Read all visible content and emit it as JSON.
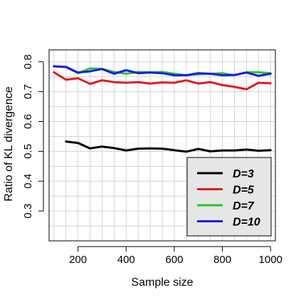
{
  "chart_data": {
    "type": "line",
    "title": "",
    "xlabel": "Sample size",
    "ylabel": "Ratio of KL divergence",
    "xlim": [
      80,
      1020
    ],
    "ylim": [
      0.2,
      0.84
    ],
    "x_ticks": [
      200,
      400,
      600,
      800,
      1000
    ],
    "x_tick_labels": [
      "200",
      "400",
      "600",
      "800",
      "1000"
    ],
    "y_ticks": [
      0.3,
      0.4,
      0.5,
      0.6,
      0.7,
      0.8
    ],
    "y_tick_labels": [
      "0.3",
      "0.4",
      "0.5",
      "0.6",
      "0.7",
      "0.8"
    ],
    "grid": true,
    "grid_x_step": 50,
    "grid_y_step": 0.05,
    "legend_position": "bottom-right",
    "series": [
      {
        "name": "D=3",
        "color": "#000000",
        "x": [
          150,
          200,
          250,
          300,
          350,
          400,
          450,
          500,
          550,
          600,
          650,
          700,
          750,
          800,
          850,
          900,
          950,
          1000
        ],
        "y": [
          0.533,
          0.528,
          0.51,
          0.516,
          0.511,
          0.503,
          0.509,
          0.51,
          0.509,
          0.504,
          0.499,
          0.508,
          0.5,
          0.503,
          0.503,
          0.506,
          0.502,
          0.504
        ]
      },
      {
        "name": "D=5",
        "color": "#e41a1c",
        "x": [
          100,
          150,
          200,
          250,
          300,
          350,
          400,
          450,
          500,
          550,
          600,
          650,
          700,
          750,
          800,
          850,
          900,
          950,
          1000
        ],
        "y": [
          0.765,
          0.74,
          0.745,
          0.726,
          0.738,
          0.732,
          0.73,
          0.732,
          0.727,
          0.731,
          0.73,
          0.738,
          0.727,
          0.732,
          0.722,
          0.716,
          0.708,
          0.73,
          0.728
        ]
      },
      {
        "name": "D=7",
        "color": "#22cc22",
        "x": [
          100,
          150,
          200,
          250,
          300,
          350,
          400,
          450,
          500,
          550,
          600,
          650,
          700,
          750,
          800,
          850,
          900,
          950,
          1000
        ],
        "y": [
          0.785,
          0.782,
          0.762,
          0.778,
          0.776,
          0.766,
          0.76,
          0.766,
          0.765,
          0.766,
          0.76,
          0.755,
          0.758,
          0.76,
          0.762,
          0.755,
          0.765,
          0.765,
          0.762
        ]
      },
      {
        "name": "D=10",
        "color": "#1a1aee",
        "x": [
          100,
          150,
          200,
          250,
          300,
          350,
          400,
          450,
          500,
          550,
          600,
          650,
          700,
          750,
          800,
          850,
          900,
          950,
          1000
        ],
        "y": [
          0.785,
          0.783,
          0.764,
          0.768,
          0.776,
          0.76,
          0.772,
          0.762,
          0.764,
          0.762,
          0.755,
          0.755,
          0.762,
          0.76,
          0.755,
          0.756,
          0.764,
          0.753,
          0.76
        ]
      }
    ]
  }
}
